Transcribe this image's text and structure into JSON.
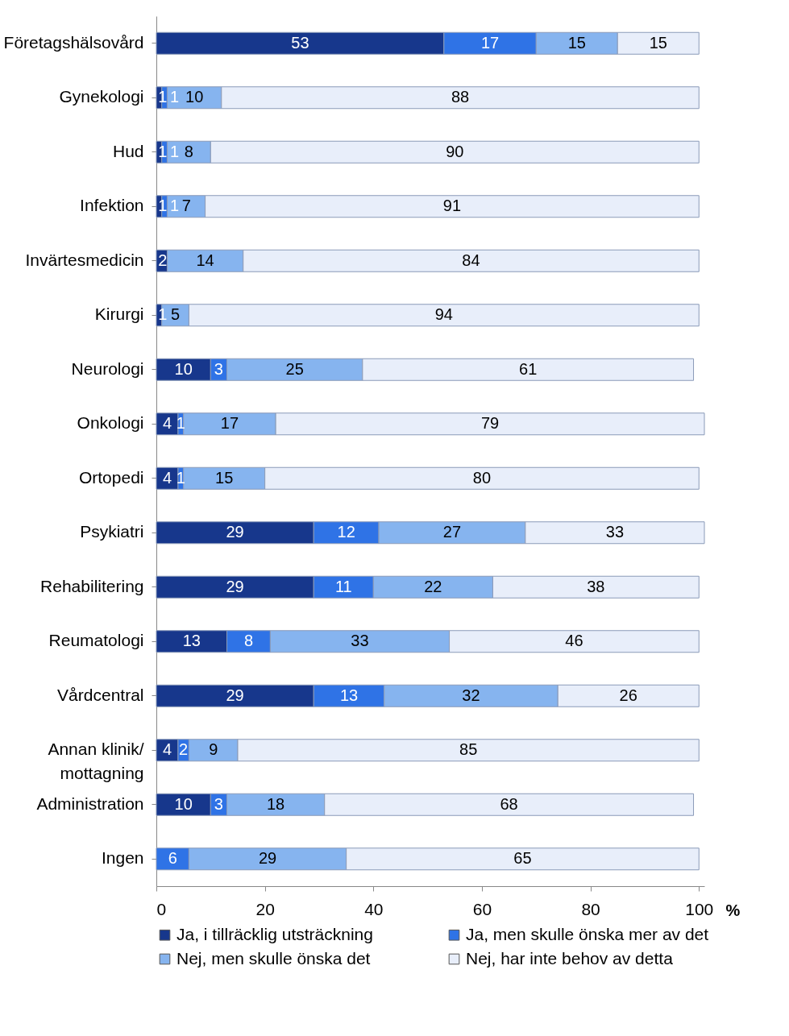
{
  "chart_data": {
    "type": "bar",
    "orientation": "horizontal",
    "stacked": true,
    "xlabel": "%",
    "categories": [
      "Företagshälsovård",
      "Gynekologi",
      "Hud",
      "Infektion",
      "Invärtesmedicin",
      "Kirurgi",
      "Neurologi",
      "Onkologi",
      "Ortopedi",
      "Psykiatri",
      "Rehabilitering",
      "Reumatologi",
      "Vårdcentral",
      "Annan klinik/\nmottagning",
      "Administration",
      "Ingen"
    ],
    "series": [
      {
        "name": "Ja, i tillräcklig utsträckning",
        "color": "#17378c",
        "values": [
          53,
          1,
          1,
          1,
          2,
          1,
          10,
          4,
          4,
          29,
          29,
          13,
          29,
          4,
          10,
          0
        ],
        "value_labels": [
          "53",
          "1",
          "1",
          "1",
          "2",
          "1",
          "10",
          "4",
          "4",
          "29",
          "29",
          "13",
          "29",
          "4",
          "10",
          null
        ]
      },
      {
        "name": "Ja, men skulle önska mer av det",
        "color": "#2f73e6",
        "values": [
          17,
          1,
          1,
          1,
          0,
          0,
          3,
          1,
          1,
          12,
          11,
          8,
          13,
          2,
          3,
          6
        ],
        "value_labels": [
          "17",
          "1",
          "1",
          "1",
          null,
          null,
          "3",
          "1",
          "1",
          "12",
          "11",
          "8",
          "13",
          "2",
          "3",
          "6"
        ]
      },
      {
        "name": "Nej, men skulle önska det",
        "color": "#86b4ef",
        "values": [
          15,
          10,
          8,
          7,
          14,
          5,
          25,
          17,
          15,
          27,
          22,
          33,
          32,
          9,
          18,
          29
        ],
        "value_labels": [
          "15",
          "10",
          "8",
          "7",
          "14",
          "5",
          "25",
          "17",
          "15",
          "27",
          "22",
          "33",
          "32",
          "9",
          "18",
          "29"
        ]
      },
      {
        "name": "Nej, har inte behov av detta",
        "color": "#e8eefa",
        "values": [
          15,
          88,
          90,
          91,
          84,
          94,
          61,
          79,
          80,
          33,
          38,
          46,
          26,
          85,
          68,
          65
        ],
        "value_labels": [
          "15",
          "88",
          "90",
          "91",
          "84",
          "94",
          "61",
          "79",
          "80",
          "33",
          "38",
          "46",
          "26",
          "85",
          "68",
          "65"
        ]
      }
    ],
    "xlim": [
      0,
      101
    ],
    "xticks": [
      0,
      20,
      40,
      60,
      80,
      100
    ],
    "legend": "bottom",
    "grid": false
  }
}
